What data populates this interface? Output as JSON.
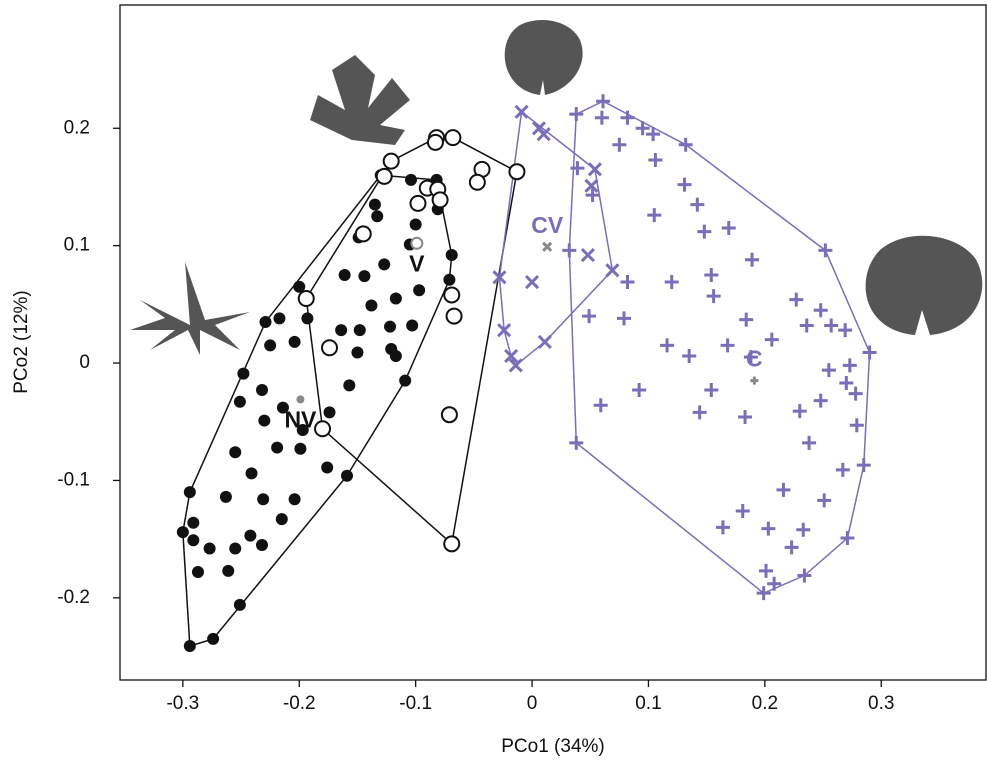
{
  "chart_data": {
    "type": "scatter",
    "x_label": "PCo1 (34%)",
    "y_label": "PCo2 (12%)",
    "xlim": [
      -0.354,
      0.39
    ],
    "ylim": [
      -0.27,
      0.305
    ],
    "xticks": [
      -0.3,
      -0.2,
      -0.1,
      0,
      0.1,
      0.2,
      0.3
    ],
    "yticks": [
      -0.2,
      -0.1,
      0,
      0.1,
      0.2
    ],
    "series": [
      {
        "marker": "filled-circle",
        "color": "#111111",
        "hull": true,
        "centroid": {
          "label": "NV",
          "x": -0.199,
          "y": -0.031
        },
        "x": [
          -0.13,
          -0.104,
          -0.082,
          -0.135,
          -0.081,
          -0.133,
          -0.149,
          -0.1,
          -0.105,
          -0.069,
          -0.127,
          -0.161,
          -0.144,
          -0.071,
          -0.097,
          -0.2,
          -0.229,
          -0.217,
          -0.193,
          -0.225,
          -0.204,
          -0.117,
          -0.138,
          -0.122,
          -0.103,
          -0.148,
          -0.164,
          -0.109,
          -0.117,
          -0.15,
          -0.121,
          -0.157,
          -0.248,
          -0.251,
          -0.23,
          -0.232,
          -0.214,
          -0.197,
          -0.255,
          -0.219,
          -0.199,
          -0.241,
          -0.231,
          -0.263,
          -0.294,
          -0.291,
          -0.204,
          -0.215,
          -0.291,
          -0.3,
          -0.277,
          -0.255,
          -0.261,
          -0.251,
          -0.287,
          -0.242,
          -0.176,
          -0.159,
          -0.294,
          -0.274,
          -0.174,
          -0.232
        ],
        "y": [
          0.16,
          0.156,
          0.156,
          0.135,
          0.131,
          0.125,
          0.107,
          0.118,
          0.101,
          0.092,
          0.084,
          0.075,
          0.074,
          0.071,
          0.062,
          0.065,
          0.035,
          0.038,
          0.038,
          0.015,
          0.018,
          0.055,
          0.049,
          0.031,
          0.032,
          0.028,
          0.028,
          -0.015,
          0.006,
          0.009,
          0.012,
          -0.019,
          -0.009,
          -0.033,
          -0.049,
          -0.023,
          -0.038,
          -0.057,
          -0.076,
          -0.072,
          -0.073,
          -0.094,
          -0.116,
          -0.114,
          -0.11,
          -0.136,
          -0.116,
          -0.133,
          -0.151,
          -0.144,
          -0.158,
          -0.158,
          -0.177,
          -0.206,
          -0.178,
          -0.147,
          -0.089,
          -0.096,
          -0.241,
          -0.235,
          -0.042,
          -0.155
        ]
      },
      {
        "marker": "open-circle",
        "color": "#111111",
        "hull": true,
        "centroid": {
          "label": "V",
          "x": -0.099,
          "y": 0.102
        },
        "x": [
          -0.082,
          -0.068,
          -0.083,
          -0.121,
          -0.127,
          -0.043,
          -0.047,
          -0.013,
          -0.09,
          -0.081,
          -0.098,
          -0.079,
          -0.145,
          -0.194,
          -0.174,
          -0.069,
          -0.067,
          -0.071,
          -0.18,
          -0.069
        ],
        "y": [
          0.192,
          0.192,
          0.188,
          0.172,
          0.159,
          0.165,
          0.154,
          0.163,
          0.149,
          0.148,
          0.136,
          0.139,
          0.11,
          0.055,
          0.013,
          0.058,
          0.04,
          -0.044,
          -0.056,
          -0.154
        ]
      },
      {
        "marker": "x",
        "color": "#7b6db8",
        "hull": true,
        "centroid": {
          "label": "CV",
          "x": 0.013,
          "y": 0.099
        },
        "x": [
          -0.009,
          0.006,
          0.01,
          0.054,
          0.051,
          -0.028,
          0.0,
          0.048,
          0.069,
          -0.024,
          -0.018,
          0.011,
          -0.014
        ],
        "y": [
          0.214,
          0.2,
          0.195,
          0.165,
          0.151,
          0.073,
          0.069,
          0.092,
          0.079,
          0.028,
          0.006,
          0.018,
          -0.002
        ]
      },
      {
        "marker": "plus",
        "color": "#7b6db8",
        "hull": true,
        "centroid": {
          "label": "C",
          "x": 0.191,
          "y": -0.015
        },
        "x": [
          0.061,
          0.038,
          0.06,
          0.082,
          0.095,
          0.104,
          0.075,
          0.132,
          0.106,
          0.131,
          0.039,
          0.052,
          0.105,
          0.142,
          0.169,
          0.148,
          0.252,
          0.032,
          0.082,
          0.12,
          0.154,
          0.189,
          0.227,
          0.049,
          0.079,
          0.156,
          0.184,
          0.248,
          0.168,
          0.206,
          0.236,
          0.257,
          0.269,
          0.29,
          0.116,
          0.135,
          0.188,
          0.273,
          0.255,
          0.27,
          0.278,
          0.248,
          0.092,
          0.059,
          0.144,
          0.154,
          0.183,
          0.23,
          0.279,
          0.285,
          0.267,
          0.238,
          0.216,
          0.164,
          0.181,
          0.203,
          0.233,
          0.251,
          0.271,
          0.201,
          0.223,
          0.234,
          0.199,
          0.208,
          0.038
        ],
        "y": [
          0.223,
          0.212,
          0.209,
          0.209,
          0.2,
          0.195,
          0.186,
          0.186,
          0.173,
          0.152,
          0.166,
          0.143,
          0.126,
          0.135,
          0.115,
          0.112,
          0.096,
          0.096,
          0.069,
          0.069,
          0.075,
          0.088,
          0.054,
          0.04,
          0.038,
          0.057,
          0.037,
          0.045,
          0.015,
          0.02,
          0.032,
          0.032,
          0.028,
          0.009,
          0.015,
          0.006,
          0.005,
          -0.002,
          -0.006,
          -0.017,
          -0.026,
          -0.032,
          -0.023,
          -0.036,
          -0.042,
          -0.023,
          -0.046,
          -0.041,
          -0.053,
          -0.087,
          -0.091,
          -0.068,
          -0.108,
          -0.14,
          -0.126,
          -0.141,
          -0.142,
          -0.117,
          -0.149,
          -0.177,
          -0.157,
          -0.181,
          -0.196,
          -0.188,
          -0.068
        ]
      }
    ]
  }
}
